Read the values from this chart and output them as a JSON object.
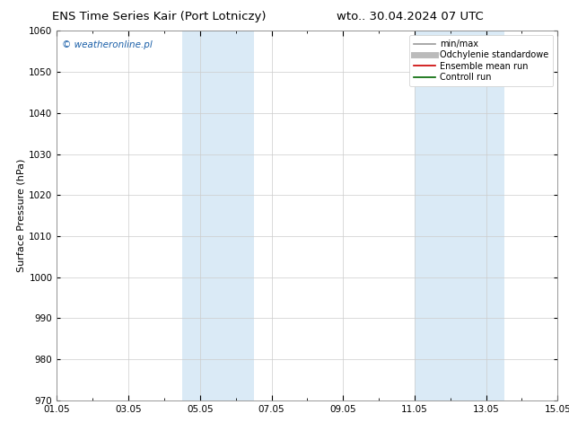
{
  "title_left": "ENS Time Series Kair (Port Lotniczy)",
  "title_right": "wto.. 30.04.2024 07 UTC",
  "ylabel": "Surface Pressure (hPa)",
  "ylim": [
    970,
    1060
  ],
  "yticks": [
    970,
    980,
    990,
    1000,
    1010,
    1020,
    1030,
    1040,
    1050,
    1060
  ],
  "xlim": [
    0,
    14
  ],
  "xtick_positions": [
    0,
    2,
    4,
    6,
    8,
    10,
    12,
    14
  ],
  "xtick_labels": [
    "01.05",
    "03.05",
    "05.05",
    "07.05",
    "09.05",
    "11.05",
    "13.05",
    "15.05"
  ],
  "shaded_regions": [
    {
      "x_start": 3.5,
      "x_end": 5.5
    },
    {
      "x_start": 10.0,
      "x_end": 12.5
    }
  ],
  "shaded_color": "#daeaf6",
  "legend_entries": [
    {
      "label": "min/max",
      "color": "#999999",
      "lw": 1.2,
      "style": "-"
    },
    {
      "label": "Odchylenie standardowe",
      "color": "#bbbbbb",
      "lw": 5,
      "style": "-"
    },
    {
      "label": "Ensemble mean run",
      "color": "#cc0000",
      "lw": 1.2,
      "style": "-"
    },
    {
      "label": "Controll run",
      "color": "#006600",
      "lw": 1.2,
      "style": "-"
    }
  ],
  "watermark": "© weatheronline.pl",
  "watermark_color": "#1a5fa8",
  "background_color": "#ffffff",
  "plot_bg_color": "#ffffff",
  "grid_color": "#cccccc",
  "title_fontsize": 9.5,
  "ylabel_fontsize": 8,
  "tick_fontsize": 7.5,
  "legend_fontsize": 7,
  "watermark_fontsize": 7.5
}
